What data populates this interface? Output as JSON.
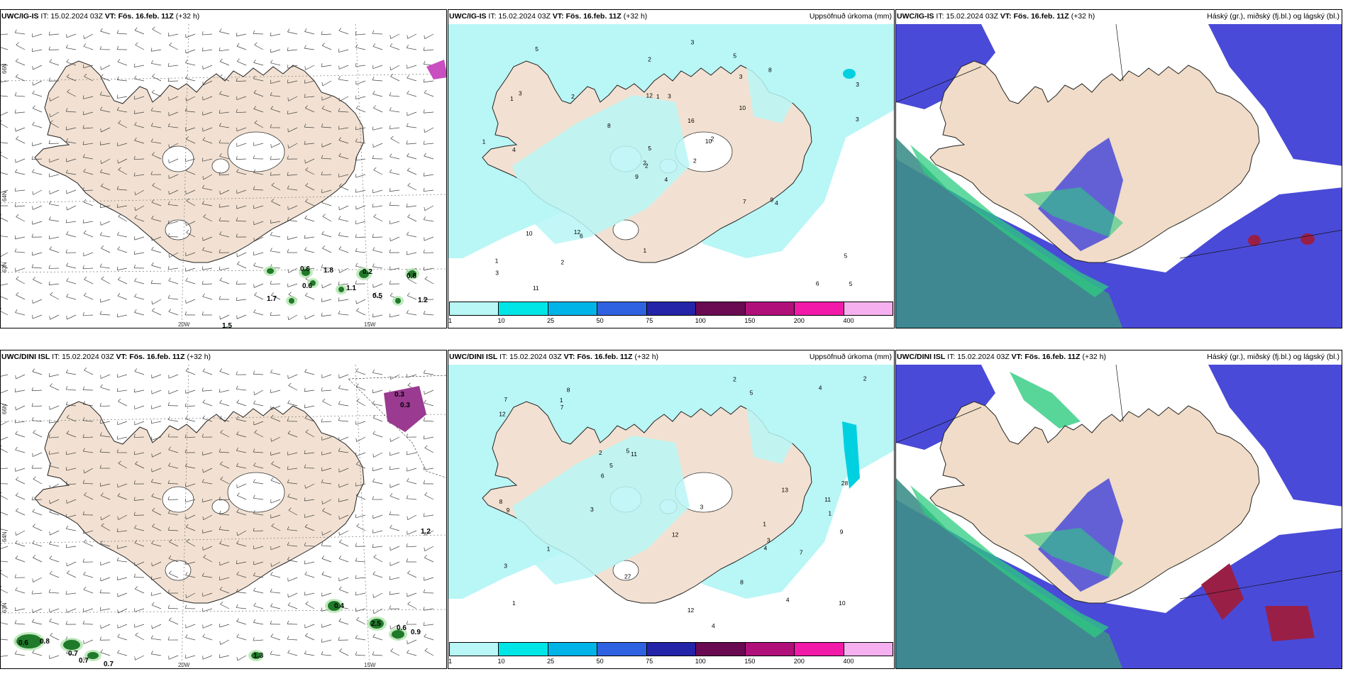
{
  "panels": {
    "p1": {
      "model": "UWC/IG-IS",
      "it": "IT: 15.02.2024 03Z",
      "vt_label": "VT:",
      "vt": "Fös. 16.feb. 11Z",
      "lead": "(+32 h)",
      "title_right": ""
    },
    "p2": {
      "model": "UWC/IG-IS",
      "it": "IT: 15.02.2024 03Z",
      "vt_label": "VT:",
      "vt": "Fös. 16.feb. 11Z",
      "lead": "(+32 h)",
      "title_right": "Uppsöfnuð úrkoma (mm)"
    },
    "p3": {
      "model": "UWC/IG-IS",
      "it": "IT: 15.02.2024 03Z",
      "vt_label": "VT:",
      "vt": "Fös. 16.feb. 11Z",
      "lead": "(+32 h)",
      "title_right": "Háský (gr.), miðský (fj.bl.) og lágský (bl.)"
    },
    "p4": {
      "model": "UWC/DINI ISL",
      "it": "IT: 15.02.2024 03Z",
      "vt_label": "VT:",
      "vt": "Fös. 16.feb. 11Z",
      "lead": "(+32 h)",
      "title_right": ""
    },
    "p5": {
      "model": "UWC/DINI ISL",
      "it": "IT: 15.02.2024 03Z",
      "vt_label": "VT:",
      "vt": "Fös. 16.feb. 11Z",
      "lead": "(+32 h)",
      "title_right": "Uppsöfnuð úrkoma (mm)"
    },
    "p6": {
      "model": "UWC/DINI ISL",
      "it": "IT: 15.02.2024 03Z",
      "vt_label": "VT:",
      "vt": "Fös. 16.feb. 11Z",
      "lead": "(+32 h)",
      "title_right": "Háský (gr.), miðský (fj.bl.) og lágský (bl.)"
    }
  },
  "axes": {
    "lat66": "66N",
    "lat64": "64N",
    "lat63": "63N",
    "lon20": "20W",
    "lon15": "15W"
  },
  "colorbar": {
    "labels": [
      "1",
      "10",
      "25",
      "50",
      "75",
      "100",
      "150",
      "200",
      "400"
    ],
    "colors": [
      "#b9f6f6",
      "#00e5e5",
      "#00b4e8",
      "#2f62e0",
      "#2424a8",
      "#6a0a52",
      "#b0107a",
      "#f21aa8",
      "#f6b0ef"
    ]
  },
  "wind_labels_top": [
    "0.6",
    "1.8",
    "0.6",
    "1.1",
    "0.2",
    "0.5",
    "0.8",
    "1.2",
    "1.7",
    "1.5"
  ],
  "wind_labels_bottom": [
    "0.3",
    "0.3",
    "1.2",
    "0.4",
    "2.5",
    "0.6",
    "0.9",
    "0.6",
    "0.8",
    "0.7",
    "0.7",
    "0.7",
    "1.3"
  ],
  "precip_labels_top": [
    "4",
    "1",
    "2",
    "1",
    "10",
    "6",
    "5",
    "3",
    "3",
    "2",
    "5",
    "5",
    "4",
    "3",
    "9",
    "10",
    "11",
    "12",
    "16",
    "10",
    "8",
    "3",
    "2",
    "1",
    "2",
    "4",
    "3",
    "2",
    "1",
    "7",
    "3",
    "2",
    "1",
    "5",
    "2",
    "8",
    "12",
    "6",
    "5",
    "9",
    "3"
  ],
  "precip_labels_bottom": [
    "1",
    "1",
    "1",
    "8",
    "11",
    "4",
    "3",
    "5",
    "2",
    "4",
    "12",
    "8",
    "7",
    "10",
    "27",
    "28",
    "12",
    "3",
    "5",
    "1",
    "2",
    "4",
    "6",
    "9",
    "2",
    "1",
    "3",
    "9",
    "7",
    "13",
    "12",
    "8",
    "5",
    "3",
    "11",
    "7",
    "4"
  ]
}
